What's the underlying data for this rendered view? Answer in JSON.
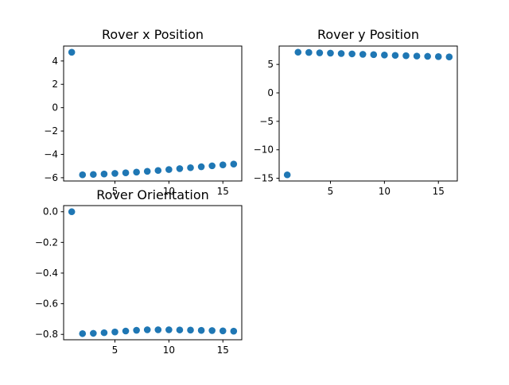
{
  "figure": {
    "background": "#ffffff",
    "marker_color": "#1f77b4"
  },
  "chart_data": [
    {
      "type": "scatter",
      "title": "Rover x Position",
      "xlabel": "",
      "ylabel": "",
      "x": [
        1,
        2,
        3,
        4,
        5,
        6,
        7,
        8,
        9,
        10,
        11,
        12,
        13,
        14,
        15,
        16
      ],
      "y": [
        4.75,
        -5.75,
        -5.72,
        -5.68,
        -5.63,
        -5.58,
        -5.52,
        -5.45,
        -5.38,
        -5.3,
        -5.22,
        -5.14,
        -5.06,
        -4.98,
        -4.9,
        -4.83
      ],
      "xlim": [
        0.25,
        16.75
      ],
      "ylim": [
        -6.28,
        5.28
      ],
      "xticks": [
        5,
        10,
        15
      ],
      "yticks": [
        -6,
        -4,
        -2,
        0,
        2,
        4
      ],
      "ytick_labels": [
        "−6",
        "−4",
        "−2",
        "0",
        "2",
        "4"
      ],
      "grid": false
    },
    {
      "type": "scatter",
      "title": "Rover y Position",
      "xlabel": "",
      "ylabel": "",
      "x": [
        1,
        2,
        3,
        4,
        5,
        6,
        7,
        8,
        9,
        10,
        11,
        12,
        13,
        14,
        15,
        16
      ],
      "y": [
        -14.4,
        7.15,
        7.1,
        7.04,
        6.98,
        6.91,
        6.85,
        6.78,
        6.72,
        6.65,
        6.59,
        6.53,
        6.47,
        6.42,
        6.37,
        6.32
      ],
      "xlim": [
        0.25,
        16.75
      ],
      "ylim": [
        -15.48,
        8.23
      ],
      "xticks": [
        5,
        10,
        15
      ],
      "yticks": [
        -15,
        -10,
        -5,
        0,
        5
      ],
      "ytick_labels": [
        "−15",
        "−10",
        "−5",
        "0",
        "5"
      ],
      "grid": false
    },
    {
      "type": "scatter",
      "title": "Rover Orientation",
      "xlabel": "",
      "ylabel": "",
      "x": [
        1,
        2,
        3,
        4,
        5,
        6,
        7,
        8,
        9,
        10,
        11,
        12,
        13,
        14,
        15,
        16
      ],
      "y": [
        0.0,
        -0.795,
        -0.793,
        -0.789,
        -0.784,
        -0.778,
        -0.773,
        -0.77,
        -0.77,
        -0.77,
        -0.771,
        -0.772,
        -0.774,
        -0.775,
        -0.777,
        -0.779
      ],
      "xlim": [
        0.25,
        16.75
      ],
      "ylim": [
        -0.835,
        0.04
      ],
      "xticks": [
        5,
        10,
        15
      ],
      "yticks": [
        0.0,
        -0.2,
        -0.4,
        -0.6,
        -0.8
      ],
      "ytick_labels": [
        "0.0",
        "−0.2",
        "−0.4",
        "−0.6",
        "−0.8"
      ],
      "grid": false
    }
  ]
}
